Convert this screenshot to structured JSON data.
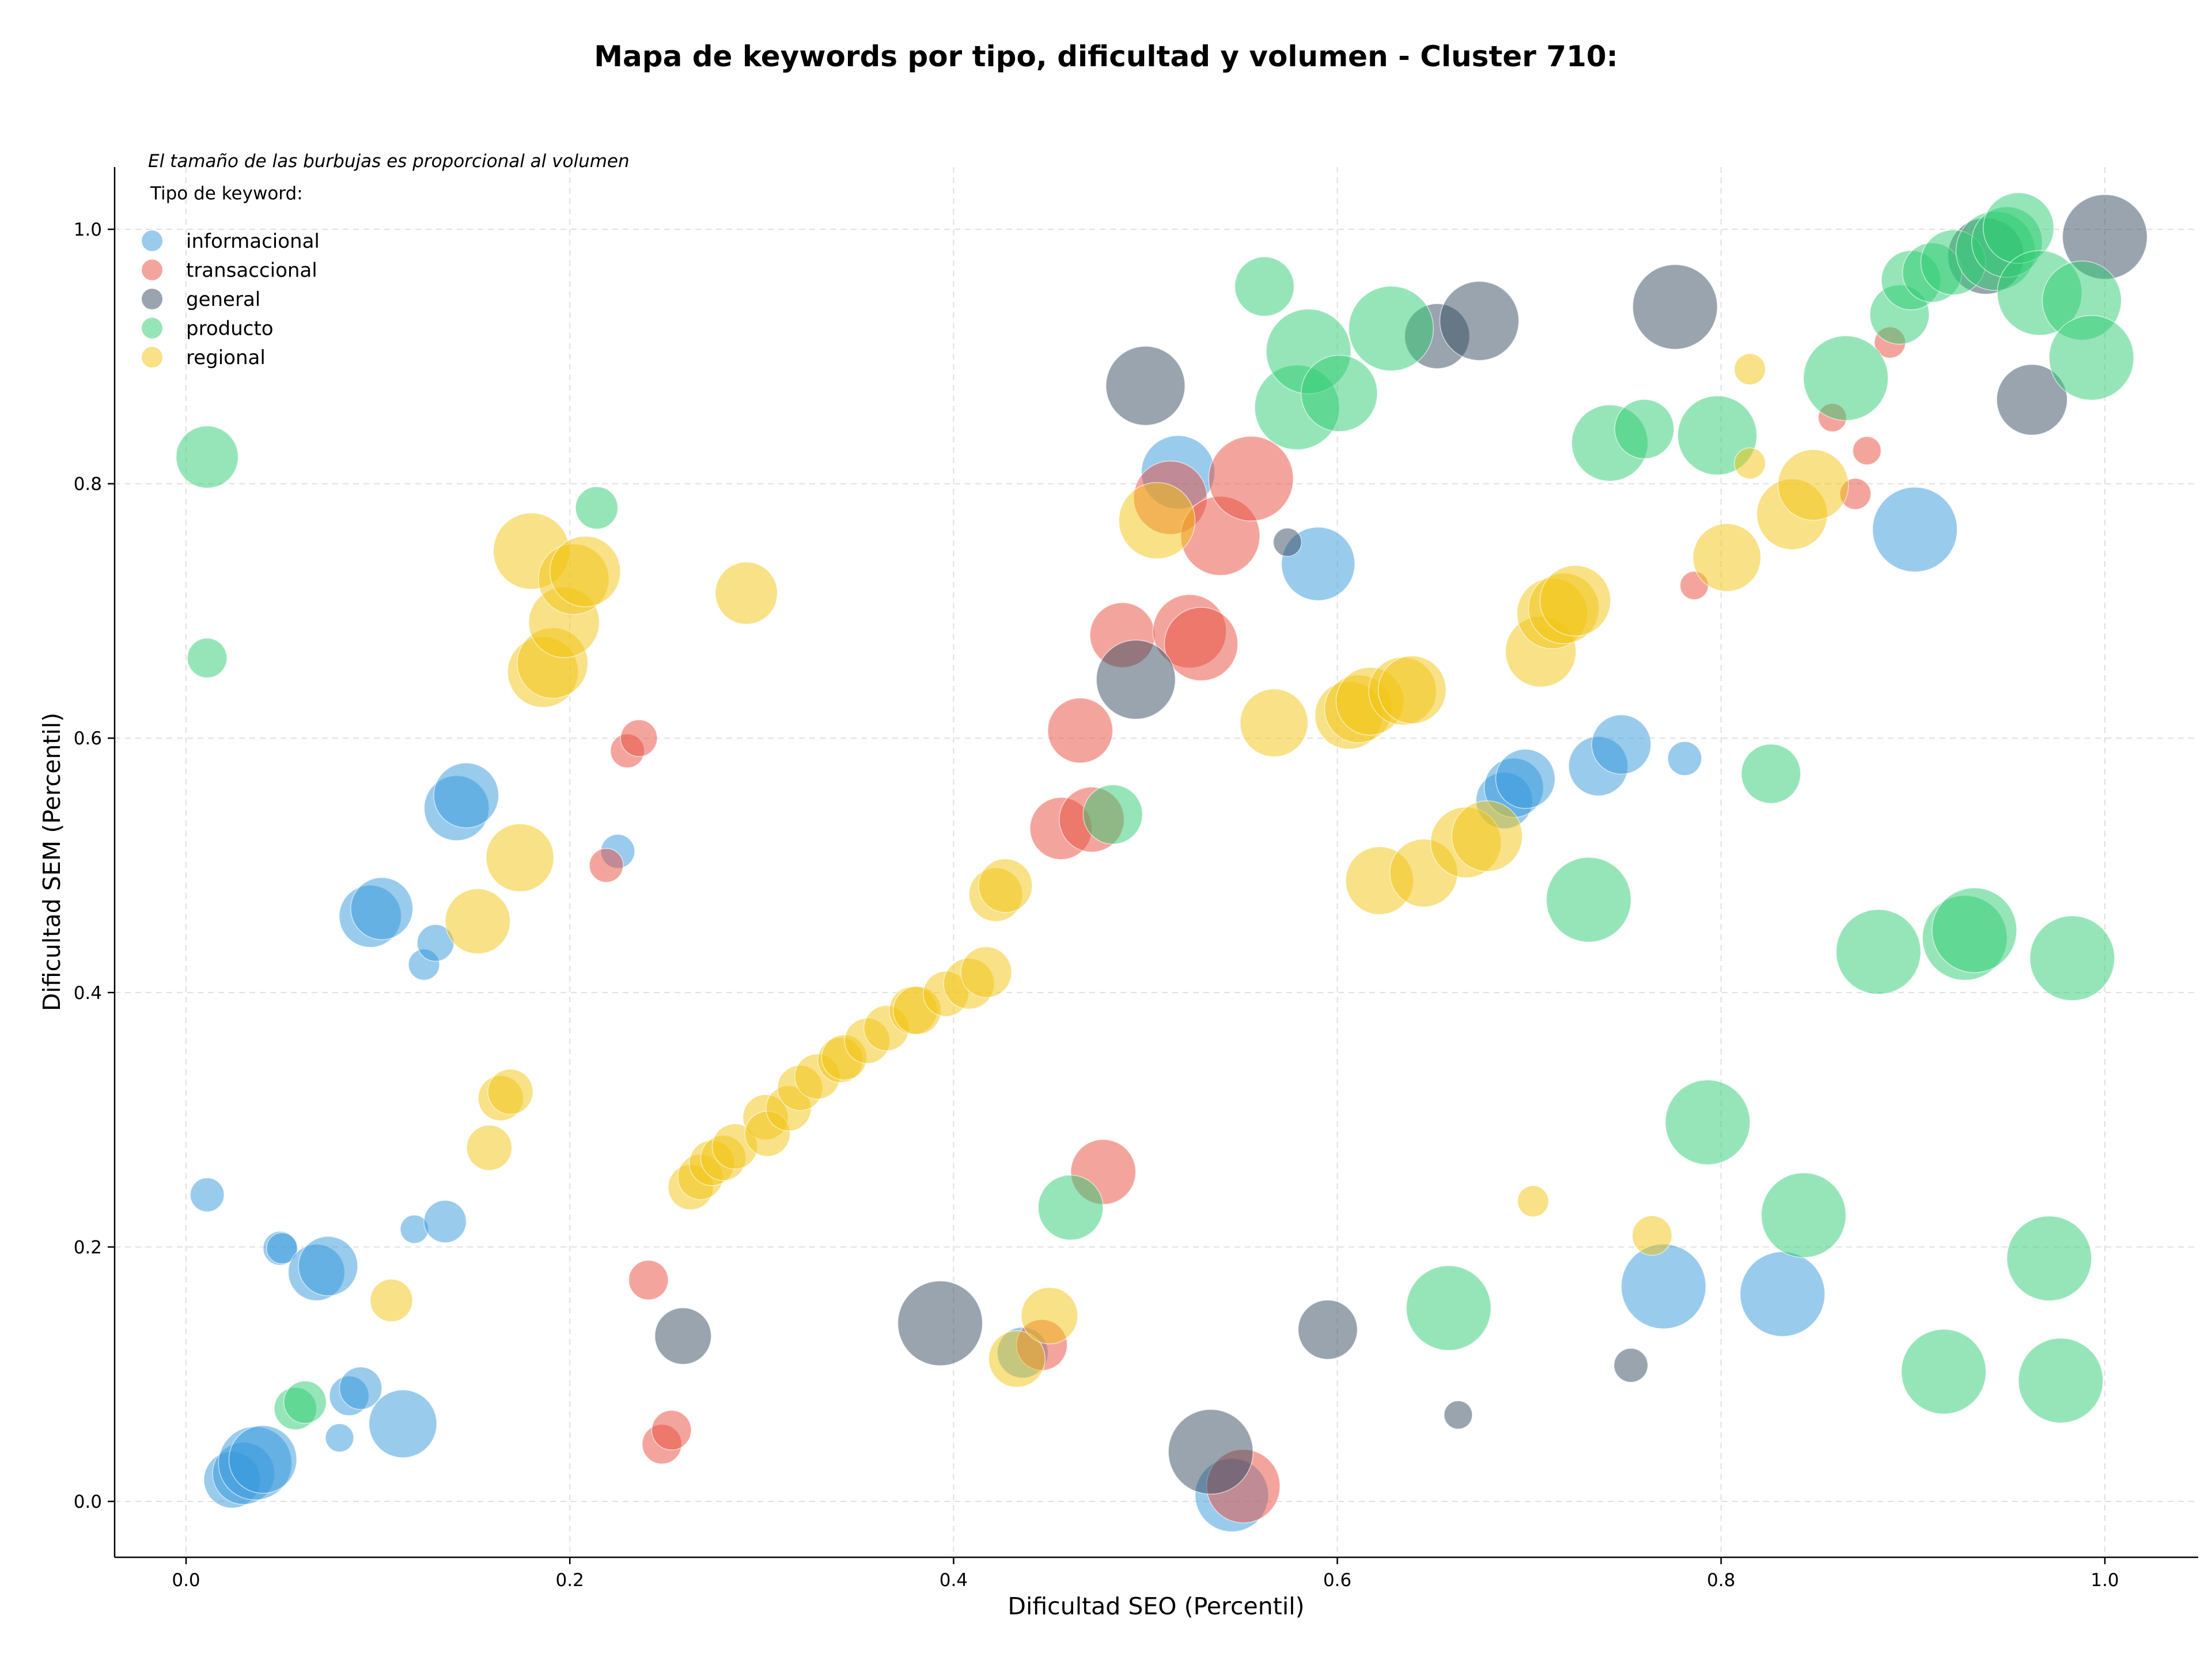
{
  "chart_data": {
    "type": "scatter",
    "title": "Mapa de keywords por tipo, dificultad y volumen - Cluster 710:",
    "xlabel": "Dificultad SEO (Percentil)",
    "ylabel": "Dificultad SEM (Percentil)",
    "xlim": [
      -0.037,
      1.048
    ],
    "ylim": [
      -0.043,
      1.05
    ],
    "xticks": [
      "0.0",
      "0.2",
      "0.4",
      "0.6",
      "0.8",
      "1.0"
    ],
    "yticks": [
      "0.0",
      "0.2",
      "0.4",
      "0.6",
      "0.8",
      "1.0"
    ],
    "grid": true,
    "note": "El tamaño de las burbujas es proporcional al volumen",
    "legend_title": "Tipo de keyword:",
    "legend_position": "top-left",
    "bubble_alpha": 0.5,
    "series": [
      {
        "name": "informacional",
        "color": "#3498db",
        "points": [
          [
            0.011,
            0.241,
            12
          ],
          [
            0.024,
            0.017,
            20
          ],
          [
            0.03,
            0.022,
            22
          ],
          [
            0.036,
            0.03,
            26
          ],
          [
            0.04,
            0.033,
            24
          ],
          [
            0.049,
            0.199,
            12
          ],
          [
            0.05,
            0.199,
            11
          ],
          [
            0.068,
            0.18,
            20
          ],
          [
            0.074,
            0.185,
            21
          ],
          [
            0.08,
            0.05,
            10
          ],
          [
            0.085,
            0.083,
            14
          ],
          [
            0.091,
            0.089,
            15
          ],
          [
            0.096,
            0.46,
            22
          ],
          [
            0.102,
            0.466,
            22
          ],
          [
            0.113,
            0.061,
            24
          ],
          [
            0.119,
            0.214,
            10
          ],
          [
            0.124,
            0.422,
            11
          ],
          [
            0.13,
            0.439,
            13
          ],
          [
            0.135,
            0.22,
            15
          ],
          [
            0.141,
            0.545,
            23
          ],
          [
            0.146,
            0.555,
            23
          ],
          [
            0.225,
            0.511,
            12
          ],
          [
            0.436,
            0.117,
            18
          ],
          [
            0.517,
            0.809,
            26
          ],
          [
            0.545,
            0.005,
            26
          ],
          [
            0.59,
            0.737,
            26
          ],
          [
            0.687,
            0.551,
            20
          ],
          [
            0.692,
            0.561,
            21
          ],
          [
            0.698,
            0.568,
            21
          ],
          [
            0.736,
            0.578,
            21
          ],
          [
            0.748,
            0.595,
            21
          ],
          [
            0.781,
            0.584,
            12
          ],
          [
            0.77,
            0.169,
            30
          ],
          [
            0.832,
            0.163,
            30
          ],
          [
            0.901,
            0.764,
            30
          ]
        ]
      },
      {
        "name": "transaccional",
        "color": "#e74c3c",
        "points": [
          [
            0.219,
            0.5,
            12
          ],
          [
            0.23,
            0.59,
            12
          ],
          [
            0.236,
            0.6,
            13
          ],
          [
            0.241,
            0.174,
            14
          ],
          [
            0.248,
            0.045,
            14
          ],
          [
            0.253,
            0.056,
            14
          ],
          [
            0.446,
            0.123,
            18
          ],
          [
            0.456,
            0.529,
            22
          ],
          [
            0.466,
            0.606,
            23
          ],
          [
            0.472,
            0.536,
            23
          ],
          [
            0.478,
            0.259,
            23
          ],
          [
            0.488,
            0.681,
            23
          ],
          [
            0.513,
            0.789,
            26
          ],
          [
            0.523,
            0.684,
            26
          ],
          [
            0.529,
            0.674,
            26
          ],
          [
            0.539,
            0.759,
            28
          ],
          [
            0.555,
            0.804,
            30
          ],
          [
            0.551,
            0.012,
            26
          ],
          [
            0.786,
            0.72,
            10
          ],
          [
            0.858,
            0.852,
            10
          ],
          [
            0.87,
            0.792,
            11
          ],
          [
            0.876,
            0.826,
            10
          ],
          [
            0.888,
            0.911,
            11
          ]
        ]
      },
      {
        "name": "general",
        "color": "#34495e",
        "points": [
          [
            0.259,
            0.13,
            20
          ],
          [
            0.393,
            0.14,
            30
          ],
          [
            0.495,
            0.646,
            28
          ],
          [
            0.5,
            0.877,
            28
          ],
          [
            0.534,
            0.039,
            30
          ],
          [
            0.574,
            0.754,
            10
          ],
          [
            0.595,
            0.135,
            21
          ],
          [
            0.652,
            0.916,
            23
          ],
          [
            0.674,
            0.928,
            28
          ],
          [
            0.663,
            0.068,
            10
          ],
          [
            0.753,
            0.107,
            12
          ],
          [
            0.776,
            0.939,
            30
          ],
          [
            0.938,
            0.979,
            27
          ],
          [
            0.962,
            0.866,
            25
          ],
          [
            1.0,
            0.994,
            30
          ]
        ]
      },
      {
        "name": "producto",
        "color": "#2ecc71",
        "points": [
          [
            0.011,
            0.821,
            22
          ],
          [
            0.011,
            0.663,
            14
          ],
          [
            0.057,
            0.073,
            15
          ],
          [
            0.062,
            0.078,
            15
          ],
          [
            0.214,
            0.781,
            15
          ],
          [
            0.461,
            0.231,
            23
          ],
          [
            0.483,
            0.54,
            21
          ],
          [
            0.562,
            0.955,
            21
          ],
          [
            0.579,
            0.86,
            30
          ],
          [
            0.585,
            0.904,
            30
          ],
          [
            0.601,
            0.871,
            27
          ],
          [
            0.628,
            0.922,
            30
          ],
          [
            0.658,
            0.152,
            30
          ],
          [
            0.731,
            0.473,
            30
          ],
          [
            0.742,
            0.832,
            27
          ],
          [
            0.76,
            0.843,
            21
          ],
          [
            0.793,
            0.298,
            30
          ],
          [
            0.798,
            0.838,
            28
          ],
          [
            0.826,
            0.572,
            21
          ],
          [
            0.843,
            0.225,
            30
          ],
          [
            0.865,
            0.883,
            30
          ],
          [
            0.882,
            0.432,
            30
          ],
          [
            0.893,
            0.933,
            21
          ],
          [
            0.899,
            0.96,
            21
          ],
          [
            0.91,
            0.966,
            21
          ],
          [
            0.921,
            0.974,
            23
          ],
          [
            0.916,
            0.102,
            30
          ],
          [
            0.927,
            0.443,
            30
          ],
          [
            0.932,
            0.449,
            30
          ],
          [
            0.943,
            0.983,
            28
          ],
          [
            0.949,
            0.99,
            25
          ],
          [
            0.955,
            1.001,
            25
          ],
          [
            0.971,
            0.191,
            30
          ],
          [
            0.966,
            0.95,
            30
          ],
          [
            0.977,
            0.095,
            30
          ],
          [
            0.983,
            0.427,
            30
          ],
          [
            0.988,
            0.944,
            28
          ],
          [
            0.993,
            0.899,
            30
          ]
        ]
      },
      {
        "name": "regional",
        "color": "#f1c40f",
        "points": [
          [
            0.107,
            0.158,
            15
          ],
          [
            0.152,
            0.456,
            23
          ],
          [
            0.158,
            0.278,
            16
          ],
          [
            0.164,
            0.317,
            16
          ],
          [
            0.169,
            0.322,
            16
          ],
          [
            0.174,
            0.506,
            24
          ],
          [
            0.18,
            0.747,
            27
          ],
          [
            0.186,
            0.652,
            25
          ],
          [
            0.191,
            0.659,
            25
          ],
          [
            0.197,
            0.691,
            25
          ],
          [
            0.202,
            0.725,
            25
          ],
          [
            0.208,
            0.731,
            25
          ],
          [
            0.263,
            0.247,
            16
          ],
          [
            0.268,
            0.255,
            16
          ],
          [
            0.274,
            0.266,
            16
          ],
          [
            0.28,
            0.27,
            16
          ],
          [
            0.286,
            0.279,
            16
          ],
          [
            0.292,
            0.714,
            22
          ],
          [
            0.302,
            0.302,
            16
          ],
          [
            0.303,
            0.289,
            16
          ],
          [
            0.314,
            0.309,
            16
          ],
          [
            0.32,
            0.325,
            16
          ],
          [
            0.329,
            0.334,
            16
          ],
          [
            0.341,
            0.347,
            16
          ],
          [
            0.343,
            0.349,
            16
          ],
          [
            0.355,
            0.362,
            16
          ],
          [
            0.365,
            0.372,
            16
          ],
          [
            0.379,
            0.386,
            17
          ],
          [
            0.381,
            0.386,
            17
          ],
          [
            0.396,
            0.399,
            16
          ],
          [
            0.408,
            0.407,
            18
          ],
          [
            0.417,
            0.416,
            18
          ],
          [
            0.422,
            0.477,
            19
          ],
          [
            0.427,
            0.484,
            19
          ],
          [
            0.433,
            0.112,
            20
          ],
          [
            0.45,
            0.146,
            20
          ],
          [
            0.506,
            0.771,
            27
          ],
          [
            0.567,
            0.612,
            24
          ],
          [
            0.606,
            0.618,
            24
          ],
          [
            0.611,
            0.623,
            24
          ],
          [
            0.617,
            0.629,
            24
          ],
          [
            0.622,
            0.488,
            24
          ],
          [
            0.634,
            0.637,
            24
          ],
          [
            0.639,
            0.638,
            24
          ],
          [
            0.645,
            0.494,
            24
          ],
          [
            0.667,
            0.518,
            25
          ],
          [
            0.678,
            0.523,
            25
          ],
          [
            0.702,
            0.236,
            11
          ],
          [
            0.706,
            0.668,
            25
          ],
          [
            0.712,
            0.698,
            25
          ],
          [
            0.718,
            0.702,
            25
          ],
          [
            0.724,
            0.708,
            25
          ],
          [
            0.764,
            0.209,
            14
          ],
          [
            0.803,
            0.742,
            24
          ],
          [
            0.815,
            0.89,
            11
          ],
          [
            0.815,
            0.816,
            11
          ],
          [
            0.837,
            0.776,
            25
          ],
          [
            0.848,
            0.799,
            25
          ]
        ]
      }
    ]
  }
}
